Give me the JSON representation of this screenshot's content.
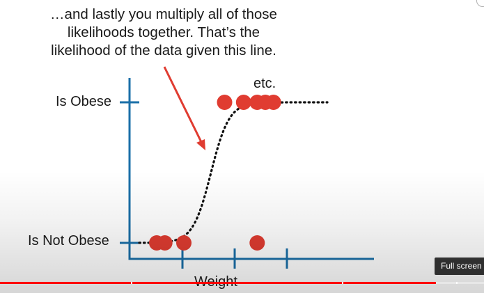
{
  "caption": {
    "text": "…and lastly you multiply all of those\nlikelihoods together. That’s the\nlikelihood of the data given this line."
  },
  "chart_data": {
    "type": "scatter",
    "title": "",
    "xlabel": "Weight",
    "y_categories": [
      "Is Not Obese",
      "Is Obese"
    ],
    "points": [
      {
        "weight": 1.0,
        "obese": 0
      },
      {
        "weight": 1.3,
        "obese": 0
      },
      {
        "weight": 2.0,
        "obese": 0
      },
      {
        "weight": 4.7,
        "obese": 0
      },
      {
        "weight": 3.5,
        "obese": 1
      },
      {
        "weight": 4.2,
        "obese": 1
      },
      {
        "weight": 4.7,
        "obese": 1
      },
      {
        "weight": 5.0,
        "obese": 1
      },
      {
        "weight": 5.3,
        "obese": 1
      }
    ],
    "xlim": [
      0,
      9
    ],
    "annotation": "etc.",
    "curve": "logistic S-curve (dotted black)",
    "colors": {
      "axis": "#1a6fa8",
      "points": "#e03c31",
      "arrow": "#e03c31",
      "curve": "#111111"
    }
  },
  "player": {
    "tooltip": "Full screen",
    "progress_fraction": 0.9
  }
}
